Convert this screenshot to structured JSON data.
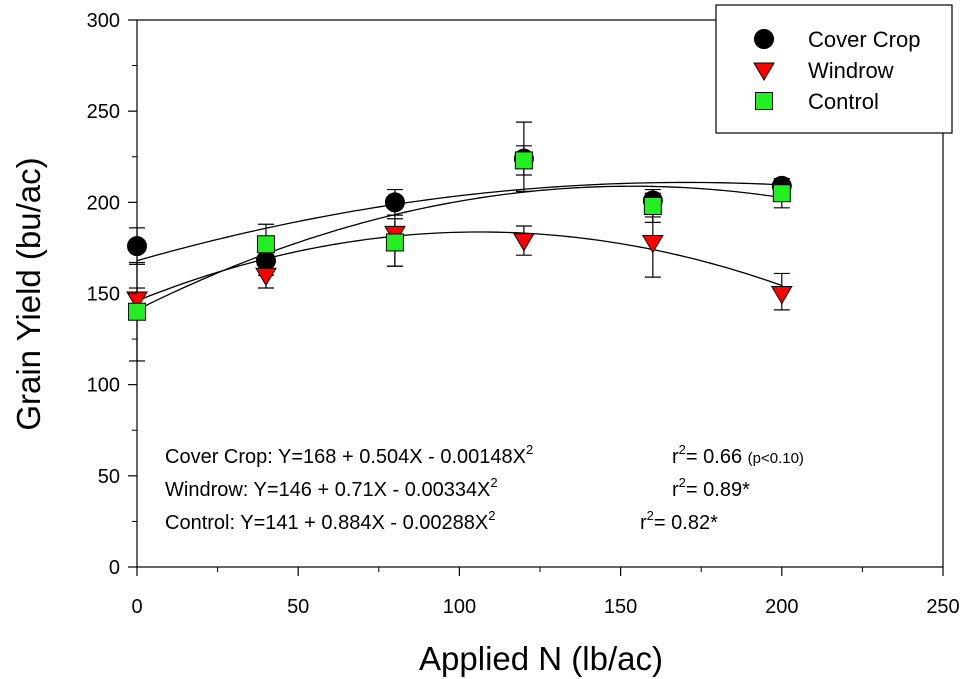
{
  "chart_data": {
    "type": "scatter",
    "xlabel": "Applied N (lb/ac)",
    "ylabel": "Grain Yield (bu/ac)",
    "xlim": [
      0,
      250
    ],
    "ylim": [
      0,
      300
    ],
    "x_ticks": [
      0,
      50,
      100,
      150,
      200,
      250
    ],
    "y_ticks": [
      0,
      50,
      100,
      150,
      200,
      250,
      300
    ],
    "x_tick_labels": [
      "0",
      "50",
      "100",
      "150",
      "200",
      "250"
    ],
    "y_tick_labels": [
      "0",
      "50",
      "100",
      "150",
      "200",
      "250",
      "300"
    ],
    "grid": false,
    "legend_position": "top-right",
    "series": [
      {
        "name": "Cover Crop",
        "marker": "circle",
        "color": "#000000",
        "x": [
          0,
          40,
          80,
          120,
          160,
          200
        ],
        "y": [
          176,
          168,
          200,
          224,
          201,
          209
        ],
        "err_low": [
          166,
          160,
          193,
          215,
          192,
          205
        ],
        "err_high": [
          186,
          176,
          207,
          231,
          205,
          213
        ],
        "fit": {
          "a": 168,
          "b": 0.504,
          "c": -0.00148
        }
      },
      {
        "name": "Windrow",
        "marker": "triangle-down",
        "color": "#ff0000",
        "x": [
          0,
          40,
          80,
          120,
          160,
          200
        ],
        "y": [
          147,
          160,
          183,
          179,
          178,
          150
        ],
        "err_low": [
          140,
          153,
          165,
          171,
          159,
          141
        ],
        "err_high": [
          153,
          167,
          200,
          187,
          197,
          161
        ],
        "fit": {
          "a": 146,
          "b": 0.71,
          "c": -0.00334
        }
      },
      {
        "name": "Control",
        "marker": "square",
        "color": "#22ee22",
        "x": [
          0,
          40,
          80,
          120,
          160,
          200
        ],
        "y": [
          140,
          177,
          178,
          223,
          198,
          205
        ],
        "err_low": [
          113,
          166,
          165,
          206,
          189,
          197
        ],
        "err_high": [
          167,
          188,
          191,
          244,
          207,
          213
        ],
        "fit": {
          "a": 141,
          "b": 0.884,
          "c": -0.00288
        }
      }
    ],
    "annotations": [
      {
        "label": "Cover Crop: Y=168 + 0.504X - 0.00148X",
        "sup": "2",
        "r": "r",
        "r_sup": "2",
        "r_value": "= 0.66 ",
        "note": "(p<0.10)"
      },
      {
        "label": "Windrow: Y=146 + 0.71X - 0.00334X",
        "sup": "2",
        "r": "r",
        "r_sup": "2",
        "r_value": "= 0.89*",
        "note": ""
      },
      {
        "label": "Control: Y=141 + 0.884X - 0.00288X",
        "sup": "2",
        "r": "r",
        "r_sup": "2",
        "r_value": "= 0.82*",
        "note": ""
      }
    ]
  }
}
